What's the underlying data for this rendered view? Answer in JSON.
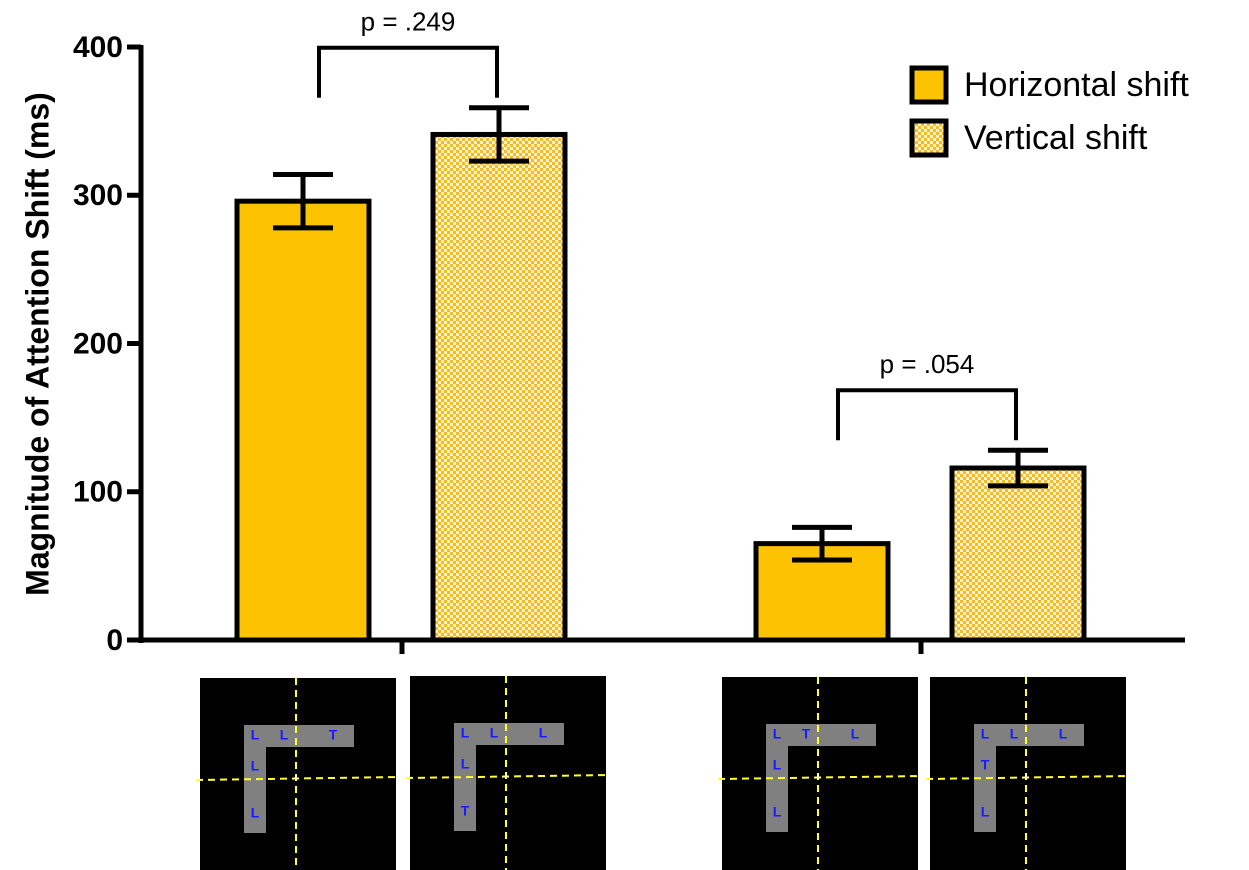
{
  "chart_data": {
    "type": "bar",
    "y_label": "Magnitude of Attention Shift (ms)",
    "categories": [
      null,
      null
    ],
    "series": [
      {
        "name": "Horizontal shift",
        "color": "#fdc300",
        "values": [
          296,
          65
        ],
        "errors": [
          18,
          11
        ]
      },
      {
        "name": "Vertical shift",
        "color": "#f7cc55",
        "pattern": "checkered",
        "values": [
          341,
          116
        ],
        "errors": [
          18,
          12
        ]
      }
    ],
    "annotations": [
      "p = .249",
      "p = .054"
    ],
    "ylim": [
      0,
      400
    ],
    "yticks": [
      0,
      100,
      200,
      300,
      400
    ],
    "grid": false,
    "legend": "top-right"
  },
  "stimuli": [
    {
      "horizontal": [
        "L",
        "L",
        "T"
      ],
      "vertical": [
        "L",
        "L"
      ]
    },
    {
      "horizontal": [
        "L",
        "L",
        "L"
      ],
      "vertical": [
        "L",
        "T"
      ]
    },
    {
      "horizontal": [
        "L",
        "T",
        "L"
      ],
      "vertical": [
        "L",
        "L"
      ]
    },
    {
      "horizontal": [
        "L",
        "L",
        "L"
      ],
      "vertical": [
        "T",
        "L"
      ]
    }
  ]
}
